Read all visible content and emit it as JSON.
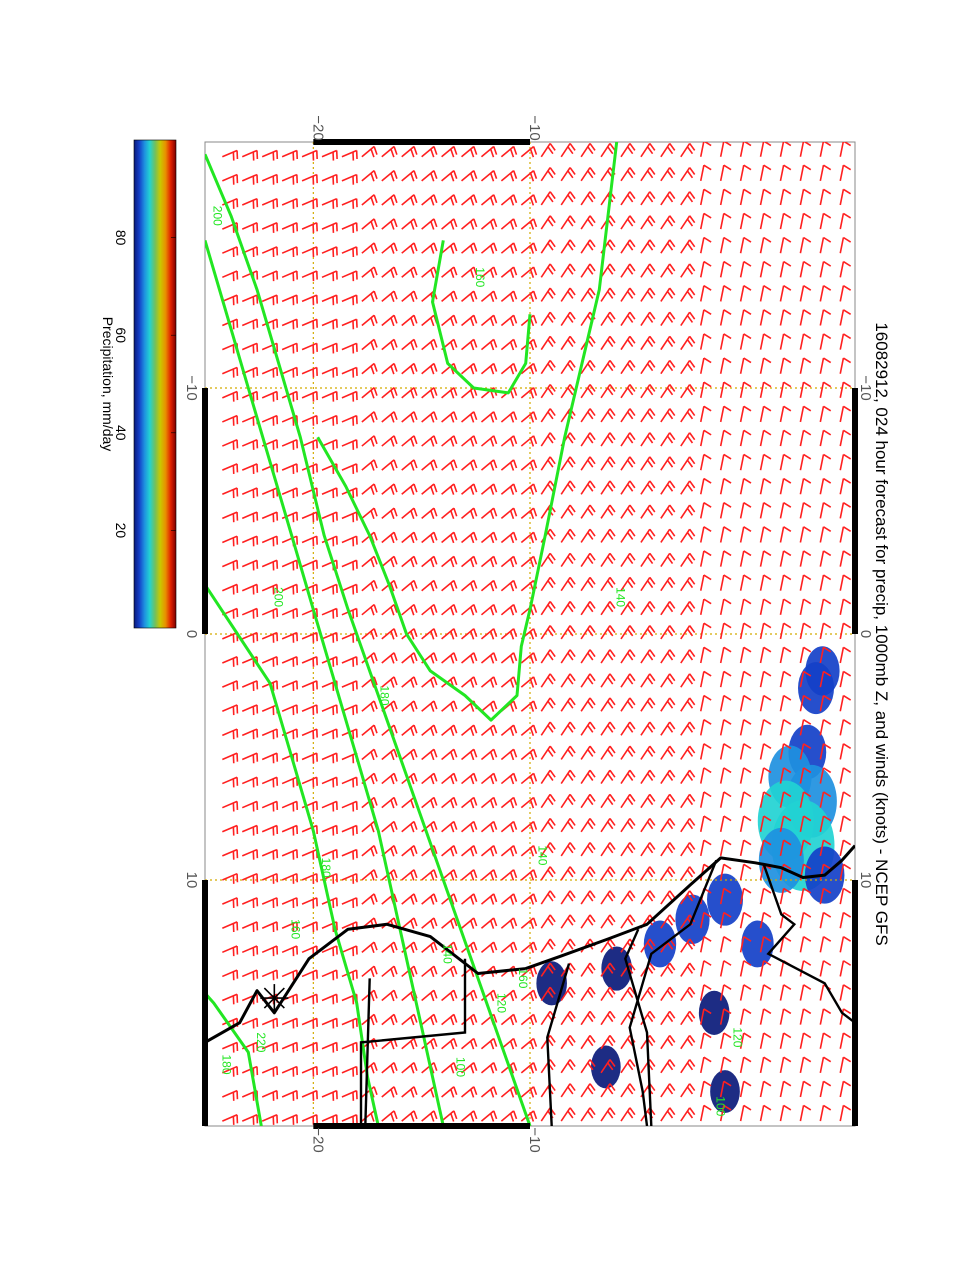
{
  "title": "16082912, 024 hour forecast for precip, 1000mb Z, and winds (knots) - NCEP GFS",
  "colorbar": {
    "label": "Precipitation, mm/day",
    "ticks": [
      "20",
      "40",
      "60",
      "80"
    ],
    "range": [
      0,
      100
    ],
    "colors": [
      "#0a1a7a",
      "#1440c8",
      "#1e90e0",
      "#22d2d2",
      "#70c060",
      "#c8c800",
      "#e89000",
      "#e02000",
      "#7a0000"
    ]
  },
  "map": {
    "top_axis_labels": [
      "−20",
      "−10"
    ],
    "bottom_axis_labels": [
      "−20",
      "−10"
    ],
    "left_axis_labels": [
      "−10",
      "0",
      "10"
    ],
    "right_axis_labels": [
      "−10",
      "0",
      "10"
    ],
    "lon_range": [
      -20,
      20
    ],
    "lat_range": [
      -25,
      5
    ],
    "grid": true,
    "colors": {
      "contour": "#22e622",
      "barb": "#ff2020",
      "coast": "#000000",
      "grid": "#d4aa00"
    },
    "contour_labels": [
      {
        "text": "220"
      },
      {
        "text": "200"
      },
      {
        "text": "180"
      },
      {
        "text": "160"
      },
      {
        "text": "140"
      },
      {
        "text": "200"
      },
      {
        "text": "180"
      },
      {
        "text": "160"
      },
      {
        "text": "140"
      },
      {
        "text": "180"
      },
      {
        "text": "160"
      },
      {
        "text": "140"
      },
      {
        "text": "120"
      },
      {
        "text": "100"
      },
      {
        "text": "120"
      },
      {
        "text": "100"
      }
    ],
    "contours": [
      {
        "value": 220,
        "points": [
          [
            -22.4,
            20
          ],
          [
            -23,
            17
          ],
          [
            -24.6,
            15
          ],
          [
            -25,
            14.6
          ]
        ]
      },
      {
        "value": 200,
        "points": [
          [
            -25,
            -2
          ],
          [
            -23.5,
            0
          ],
          [
            -22,
            2
          ],
          [
            -21,
            5
          ],
          [
            -20,
            8
          ],
          [
            -19,
            12
          ],
          [
            -18,
            15
          ],
          [
            -17.5,
            18
          ],
          [
            -17,
            20
          ]
        ]
      },
      {
        "value": 180,
        "points": [
          [
            -25,
            -16
          ],
          [
            -24,
            -13
          ],
          [
            -23,
            -10
          ],
          [
            -22,
            -7
          ],
          [
            -21,
            -4
          ],
          [
            -20,
            -1
          ],
          [
            -19,
            2
          ],
          [
            -18,
            5
          ],
          [
            -17,
            8
          ],
          [
            -16,
            12
          ],
          [
            -15,
            16
          ],
          [
            -14,
            20
          ]
        ]
      },
      {
        "value": 160,
        "points": [
          [
            -25,
            -19.5
          ],
          [
            -23.8,
            -17
          ],
          [
            -22.6,
            -14
          ],
          [
            -21.6,
            -11
          ],
          [
            -20.6,
            -8
          ],
          [
            -19.5,
            -4
          ],
          [
            -18.4,
            -1
          ],
          [
            -17.2,
            2
          ],
          [
            -16,
            5
          ],
          [
            -14.8,
            8
          ],
          [
            -13.6,
            11
          ],
          [
            -12.4,
            14
          ],
          [
            -11.2,
            17
          ],
          [
            -10,
            20
          ]
        ]
      },
      {
        "value": 140,
        "points": [
          [
            -19.8,
            -8
          ],
          [
            -18.5,
            -6
          ],
          [
            -17.4,
            -4
          ],
          [
            -16.5,
            -2
          ],
          [
            -15.7,
            0
          ],
          [
            -14.6,
            1.5
          ],
          [
            -13,
            2.5
          ],
          [
            -11.8,
            3.5
          ],
          [
            -10.6,
            2.5
          ],
          [
            -10.4,
            0.5
          ],
          [
            -10,
            -1
          ],
          [
            -9.3,
            -4
          ],
          [
            -8.4,
            -8
          ],
          [
            -7.6,
            -11
          ],
          [
            -6.8,
            -14
          ],
          [
            -6.4,
            -17
          ],
          [
            -6,
            -20
          ]
        ]
      },
      {
        "value": 120,
        "points": [
          [
            -14,
            -16
          ],
          [
            -14.5,
            -13.5
          ],
          [
            -13.8,
            -11
          ],
          [
            -12.6,
            -10
          ],
          [
            -11,
            -9.8
          ],
          [
            -10.2,
            -11
          ],
          [
            -10,
            -13
          ]
        ]
      }
    ],
    "barb_vectors": [
      {
        "lat_from": -25,
        "lat_to": -18,
        "u": -6,
        "v": 14
      },
      {
        "lat_from": -18,
        "lat_to": -10,
        "u": -10,
        "v": 12
      },
      {
        "lat_from": -10,
        "lat_to": -3,
        "u": -12,
        "v": 8
      },
      {
        "lat_from": -3,
        "lat_to": 5,
        "u": -10,
        "v": 2
      }
    ],
    "precip_cells": [
      {
        "lat": 3.5,
        "lon": 1.5,
        "value": 10
      },
      {
        "lat": 3.2,
        "lon": 2.2,
        "value": 12
      },
      {
        "lat": 2.8,
        "lon": 4.8,
        "value": 14
      },
      {
        "lat": 2.0,
        "lon": 5.8,
        "value": 20
      },
      {
        "lat": 3.0,
        "lon": 6.8,
        "value": 28
      },
      {
        "lat": 1.8,
        "lon": 7.6,
        "value": 34
      },
      {
        "lat": 2.6,
        "lon": 8.6,
        "value": 42
      },
      {
        "lat": 1.6,
        "lon": 9.2,
        "value": 22
      },
      {
        "lat": 3.6,
        "lon": 9.8,
        "value": 16
      },
      {
        "lat": -1.0,
        "lon": 10.8,
        "value": 12
      },
      {
        "lat": -2.5,
        "lon": 11.6,
        "value": 10
      },
      {
        "lat": -4.0,
        "lon": 12.6,
        "value": 8
      },
      {
        "lat": -6.0,
        "lon": 13.6,
        "value": 6
      },
      {
        "lat": -9.0,
        "lon": 14.2,
        "value": 6
      },
      {
        "lat": 0.5,
        "lon": 12.6,
        "value": 8
      },
      {
        "lat": -1.5,
        "lon": 15.4,
        "value": 6
      },
      {
        "lat": -6.5,
        "lon": 17.6,
        "value": 5
      },
      {
        "lat": -1.0,
        "lon": 18.6,
        "value": 5
      }
    ]
  }
}
